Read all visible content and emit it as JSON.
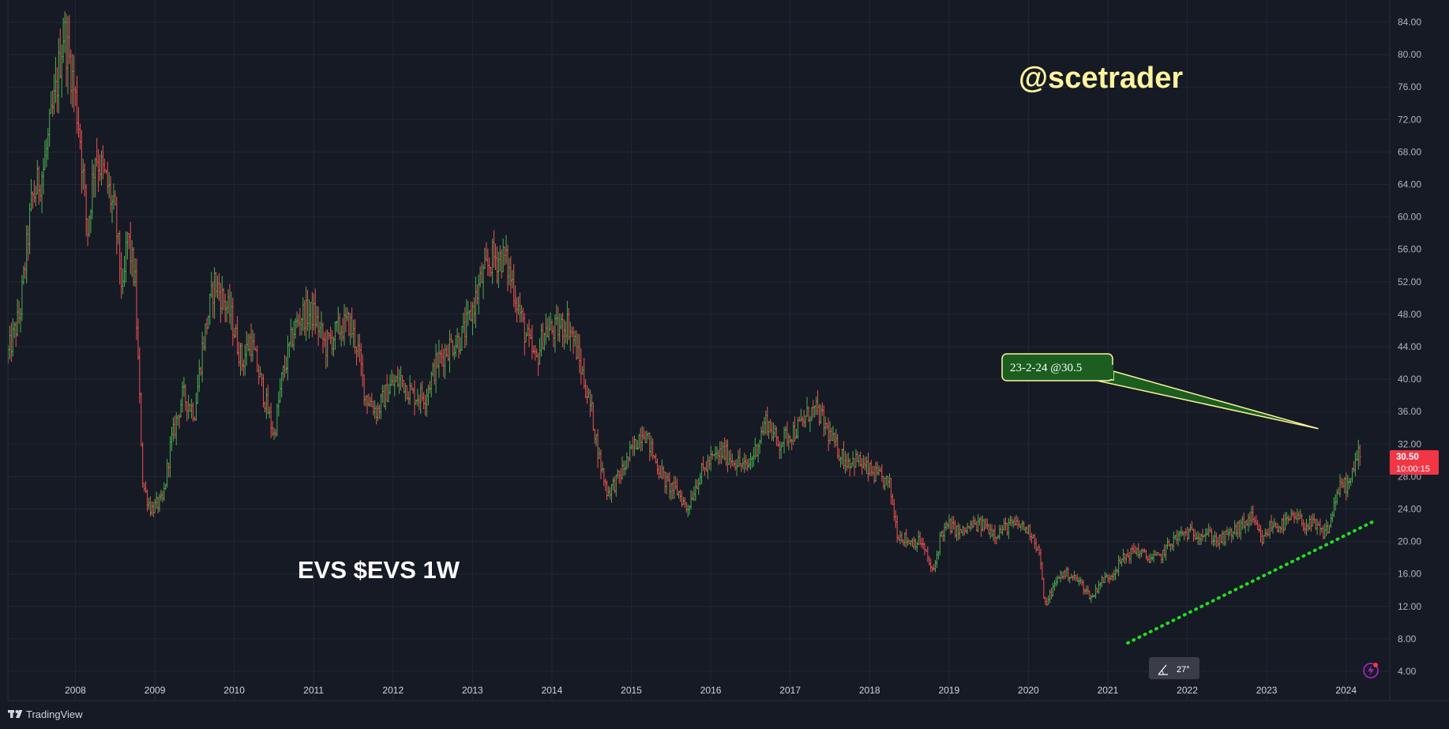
{
  "brand": {
    "name": "TradingView"
  },
  "title": "EVS $EVS 1W",
  "watermark": "@scetrader",
  "annotation": {
    "text": "23-2-24 @30.5",
    "date": "2024-02-23",
    "price": 30.5
  },
  "price_label": {
    "price": "30.50",
    "countdown": "10:00:15",
    "color": "#f23645"
  },
  "angle_badge": {
    "text": "27°"
  },
  "colors": {
    "background": "#161a25",
    "up": "#26a69a",
    "up_bright": "#4caf50",
    "down": "#ef5350",
    "trendline": "#22dd22",
    "callout_fill": "#1b5e20",
    "callout_border": "#fff59d"
  },
  "chart_data": {
    "type": "candlestick",
    "title": "EVS $EVS 1W",
    "timeframe": "1W",
    "xlabel": "",
    "ylabel": "",
    "x_ticks": [
      "2008",
      "2009",
      "2010",
      "2011",
      "2012",
      "2013",
      "2014",
      "2015",
      "2016",
      "2017",
      "2018",
      "2019",
      "2020",
      "2021",
      "2022",
      "2023",
      "2024"
    ],
    "y_ticks": [
      "4.00",
      "8.00",
      "12.00",
      "16.00",
      "20.00",
      "24.00",
      "28.00",
      "32.00",
      "36.00",
      "40.00",
      "44.00",
      "48.00",
      "52.00",
      "56.00",
      "60.00",
      "64.00",
      "68.00",
      "72.00",
      "76.00",
      "80.00",
      "84.00"
    ],
    "ylim": [
      2.0,
      86.0
    ],
    "xlim": [
      2007.15,
      2024.55
    ],
    "grid": true,
    "last_price": 30.5,
    "price_path": [
      [
        2007.15,
        43
      ],
      [
        2007.3,
        48
      ],
      [
        2007.45,
        62
      ],
      [
        2007.6,
        66
      ],
      [
        2007.75,
        75
      ],
      [
        2007.85,
        83
      ],
      [
        2007.95,
        78
      ],
      [
        2008.05,
        71
      ],
      [
        2008.15,
        58
      ],
      [
        2008.25,
        68
      ],
      [
        2008.4,
        64
      ],
      [
        2008.5,
        60
      ],
      [
        2008.6,
        50
      ],
      [
        2008.65,
        58
      ],
      [
        2008.75,
        52
      ],
      [
        2008.85,
        27
      ],
      [
        2008.95,
        24
      ],
      [
        2009.1,
        25
      ],
      [
        2009.2,
        32
      ],
      [
        2009.35,
        38
      ],
      [
        2009.5,
        36
      ],
      [
        2009.6,
        44
      ],
      [
        2009.75,
        52
      ],
      [
        2009.85,
        50
      ],
      [
        2009.95,
        48
      ],
      [
        2010.1,
        42
      ],
      [
        2010.2,
        45
      ],
      [
        2010.35,
        39
      ],
      [
        2010.5,
        33
      ],
      [
        2010.6,
        40
      ],
      [
        2010.75,
        46
      ],
      [
        2010.85,
        48
      ],
      [
        2011.0,
        48
      ],
      [
        2011.15,
        44
      ],
      [
        2011.3,
        46
      ],
      [
        2011.45,
        47
      ],
      [
        2011.55,
        44
      ],
      [
        2011.65,
        38
      ],
      [
        2011.8,
        36
      ],
      [
        2011.95,
        39
      ],
      [
        2012.1,
        40
      ],
      [
        2012.25,
        38
      ],
      [
        2012.4,
        38
      ],
      [
        2012.55,
        42
      ],
      [
        2012.7,
        44
      ],
      [
        2012.85,
        45
      ],
      [
        2012.95,
        47
      ],
      [
        2013.1,
        52
      ],
      [
        2013.25,
        55
      ],
      [
        2013.4,
        55
      ],
      [
        2013.5,
        52
      ],
      [
        2013.65,
        46
      ],
      [
        2013.8,
        42
      ],
      [
        2013.9,
        46
      ],
      [
        2014.05,
        46
      ],
      [
        2014.2,
        47
      ],
      [
        2014.3,
        44
      ],
      [
        2014.4,
        40
      ],
      [
        2014.5,
        36
      ],
      [
        2014.6,
        30
      ],
      [
        2014.7,
        26
      ],
      [
        2014.85,
        28
      ],
      [
        2014.95,
        30
      ],
      [
        2015.05,
        32
      ],
      [
        2015.15,
        34
      ],
      [
        2015.3,
        30
      ],
      [
        2015.45,
        27
      ],
      [
        2015.6,
        26
      ],
      [
        2015.7,
        24
      ],
      [
        2015.85,
        28
      ],
      [
        2016.0,
        30
      ],
      [
        2016.15,
        31
      ],
      [
        2016.3,
        30
      ],
      [
        2016.45,
        29
      ],
      [
        2016.55,
        31
      ],
      [
        2016.7,
        35
      ],
      [
        2016.85,
        32
      ],
      [
        2016.95,
        33
      ],
      [
        2017.1,
        34
      ],
      [
        2017.25,
        36
      ],
      [
        2017.35,
        36
      ],
      [
        2017.45,
        34
      ],
      [
        2017.55,
        32
      ],
      [
        2017.7,
        30
      ],
      [
        2017.85,
        30
      ],
      [
        2017.95,
        29
      ],
      [
        2018.1,
        28
      ],
      [
        2018.25,
        27
      ],
      [
        2018.35,
        21
      ],
      [
        2018.5,
        20
      ],
      [
        2018.65,
        20
      ],
      [
        2018.8,
        16
      ],
      [
        2018.9,
        21
      ],
      [
        2019.0,
        22
      ],
      [
        2019.15,
        21
      ],
      [
        2019.3,
        22
      ],
      [
        2019.45,
        22
      ],
      [
        2019.6,
        21
      ],
      [
        2019.75,
        22
      ],
      [
        2019.9,
        22
      ],
      [
        2020.05,
        21
      ],
      [
        2020.15,
        18
      ],
      [
        2020.2,
        12
      ],
      [
        2020.3,
        14
      ],
      [
        2020.4,
        16
      ],
      [
        2020.5,
        16
      ],
      [
        2020.65,
        15
      ],
      [
        2020.8,
        13
      ],
      [
        2020.9,
        15
      ],
      [
        2021.05,
        16
      ],
      [
        2021.2,
        18
      ],
      [
        2021.35,
        19
      ],
      [
        2021.5,
        18
      ],
      [
        2021.65,
        18
      ],
      [
        2021.8,
        20
      ],
      [
        2021.95,
        21
      ],
      [
        2022.1,
        21
      ],
      [
        2022.25,
        21
      ],
      [
        2022.4,
        20
      ],
      [
        2022.55,
        21
      ],
      [
        2022.7,
        22
      ],
      [
        2022.8,
        23
      ],
      [
        2022.95,
        20
      ],
      [
        2023.05,
        22
      ],
      [
        2023.2,
        22
      ],
      [
        2023.35,
        23
      ],
      [
        2023.5,
        22
      ],
      [
        2023.6,
        22
      ],
      [
        2023.7,
        21
      ],
      [
        2023.8,
        22
      ],
      [
        2023.85,
        25
      ],
      [
        2023.95,
        27
      ],
      [
        2024.05,
        27
      ],
      [
        2024.1,
        29
      ],
      [
        2024.15,
        31
      ],
      [
        2024.18,
        30.5
      ]
    ],
    "trendline": {
      "style": "dotted",
      "from": {
        "date": 2021.25,
        "price": 7.5
      },
      "to": {
        "date": 2024.35,
        "price": 22.5
      }
    }
  }
}
